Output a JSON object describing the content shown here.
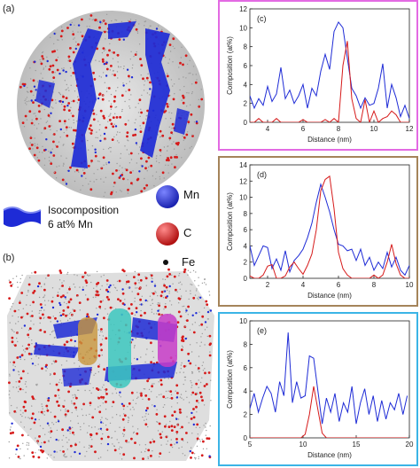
{
  "panels": {
    "a": "(a)",
    "b": "(b)"
  },
  "legend": {
    "isocomposition_line1": "Isocomposition",
    "isocomposition_line2": "6 at% Mn",
    "mn": "Mn",
    "c": "C",
    "fe": "Fe"
  },
  "colors": {
    "mn": "#1e2bd6",
    "c": "#d61a1a",
    "fe": "#222222",
    "frame_c": "#e36ae3",
    "frame_d": "#a5845a",
    "frame_e": "#3bb4e6",
    "cyl_orange": "#c8963c",
    "cyl_teal": "#3cc8c0",
    "cyl_magenta": "#c83cc8"
  },
  "chart_data": [
    {
      "type": "line",
      "panel": "(c)",
      "xlabel": "Distance (nm)",
      "ylabel": "Composition (at%)",
      "xlim": [
        3,
        12
      ],
      "ylim": [
        0,
        12
      ],
      "xticks": [
        4,
        6,
        8,
        10,
        12
      ],
      "yticks": [
        0,
        2,
        4,
        6,
        8,
        10,
        12
      ],
      "x": [
        3.0,
        3.25,
        3.5,
        3.75,
        4.0,
        4.25,
        4.5,
        4.75,
        5.0,
        5.25,
        5.5,
        5.75,
        6.0,
        6.25,
        6.5,
        6.75,
        7.0,
        7.25,
        7.5,
        7.75,
        8.0,
        8.25,
        8.5,
        8.75,
        9.0,
        9.25,
        9.5,
        9.75,
        10.0,
        10.25,
        10.5,
        10.75,
        11.0,
        11.25,
        11.5,
        11.75,
        12.0
      ],
      "series": [
        {
          "color": "#1e2bd6",
          "values": [
            2.8,
            1.5,
            2.5,
            1.8,
            3.8,
            2.2,
            3.0,
            5.8,
            2.5,
            3.4,
            2.0,
            2.8,
            4.0,
            1.5,
            3.6,
            2.8,
            5.4,
            7.2,
            5.6,
            9.6,
            10.6,
            10.0,
            6.8,
            3.6,
            2.8,
            1.5,
            2.6,
            1.8,
            2.0,
            3.6,
            6.2,
            1.5,
            4.0,
            2.6,
            0.6,
            1.8,
            0.4
          ]
        },
        {
          "color": "#d61a1a",
          "values": [
            0,
            0,
            0.4,
            0,
            0,
            0,
            0.4,
            0,
            0,
            0,
            0,
            0,
            0.3,
            0,
            0,
            0,
            0,
            0.3,
            0,
            0.4,
            0,
            6.0,
            8.6,
            2.5,
            0.4,
            0,
            2.4,
            0,
            1.2,
            0,
            0.4,
            0.6,
            1.2,
            0.8,
            0,
            0,
            0
          ]
        }
      ]
    },
    {
      "type": "line",
      "panel": "(d)",
      "xlabel": "Distance (nm)",
      "ylabel": "Composition (at%)",
      "xlim": [
        1,
        10
      ],
      "ylim": [
        0,
        14
      ],
      "xticks": [
        2,
        4,
        6,
        8,
        10
      ],
      "yticks": [
        0,
        2,
        4,
        6,
        8,
        10,
        12,
        14
      ],
      "x": [
        1.0,
        1.25,
        1.5,
        1.75,
        2.0,
        2.25,
        2.5,
        2.75,
        3.0,
        3.25,
        3.5,
        3.75,
        4.0,
        4.25,
        4.5,
        4.75,
        5.0,
        5.25,
        5.5,
        5.75,
        6.0,
        6.25,
        6.5,
        6.75,
        7.0,
        7.25,
        7.5,
        7.75,
        8.0,
        8.25,
        8.5,
        8.75,
        9.0,
        9.25,
        9.5,
        9.75,
        10.0
      ],
      "series": [
        {
          "color": "#1e2bd6",
          "values": [
            4.0,
            1.6,
            2.8,
            4.0,
            3.8,
            1.2,
            2.4,
            1.0,
            3.4,
            0.8,
            2.2,
            2.8,
            3.6,
            5.0,
            6.8,
            9.4,
            11.6,
            10.0,
            8.2,
            6.0,
            4.2,
            4.0,
            3.4,
            3.6,
            2.2,
            3.6,
            1.6,
            2.6,
            1.0,
            2.0,
            1.2,
            3.2,
            1.4,
            2.6,
            1.0,
            0.4,
            1.6
          ]
        },
        {
          "color": "#d61a1a",
          "values": [
            0.3,
            0,
            0,
            0.4,
            1.5,
            1.7,
            0,
            0,
            0.3,
            1.4,
            2.0,
            1.2,
            0.5,
            1.6,
            3.0,
            6.0,
            10.8,
            12.2,
            12.6,
            8.6,
            3.2,
            1.2,
            0.4,
            0,
            0,
            0,
            0,
            0,
            0.4,
            0,
            0.4,
            2.0,
            4.2,
            1.8,
            0.4,
            0,
            0
          ]
        }
      ]
    },
    {
      "type": "line",
      "panel": "(e)",
      "xlabel": "Distance (nm)",
      "ylabel": "Composition (at%)",
      "xlim": [
        5,
        20
      ],
      "ylim": [
        0,
        10
      ],
      "xticks": [
        5,
        10,
        15,
        20
      ],
      "yticks": [
        0,
        2,
        4,
        6,
        8,
        10
      ],
      "x": [
        5.0,
        5.4,
        5.8,
        6.2,
        6.6,
        7.0,
        7.4,
        7.8,
        8.2,
        8.6,
        9.0,
        9.4,
        9.8,
        10.2,
        10.6,
        11.0,
        11.4,
        11.8,
        12.2,
        12.6,
        13.0,
        13.4,
        13.8,
        14.2,
        14.6,
        15.0,
        15.4,
        15.8,
        16.2,
        16.6,
        17.0,
        17.4,
        17.8,
        18.2,
        18.6,
        19.0,
        19.4,
        19.8
      ],
      "series": [
        {
          "color": "#1e2bd6",
          "values": [
            2.5,
            3.8,
            2.2,
            3.4,
            4.4,
            3.8,
            2.2,
            4.8,
            3.6,
            9.0,
            3.0,
            4.8,
            3.4,
            3.6,
            7.0,
            6.8,
            4.0,
            1.2,
            3.4,
            2.2,
            3.8,
            1.4,
            3.0,
            2.2,
            4.4,
            1.2,
            3.0,
            4.2,
            2.0,
            3.6,
            1.4,
            3.2,
            1.6,
            3.0,
            2.4,
            3.8,
            2.0,
            3.6
          ]
        },
        {
          "color": "#d61a1a",
          "values": [
            0,
            0,
            0,
            0,
            0,
            0,
            0,
            0,
            0,
            0,
            0,
            0,
            0,
            0.3,
            2.0,
            4.4,
            2.4,
            0.4,
            0,
            0,
            0,
            0,
            0,
            0,
            0,
            0,
            0,
            0,
            0,
            0,
            0,
            0,
            0,
            0,
            0,
            0,
            0,
            0
          ]
        }
      ]
    }
  ]
}
